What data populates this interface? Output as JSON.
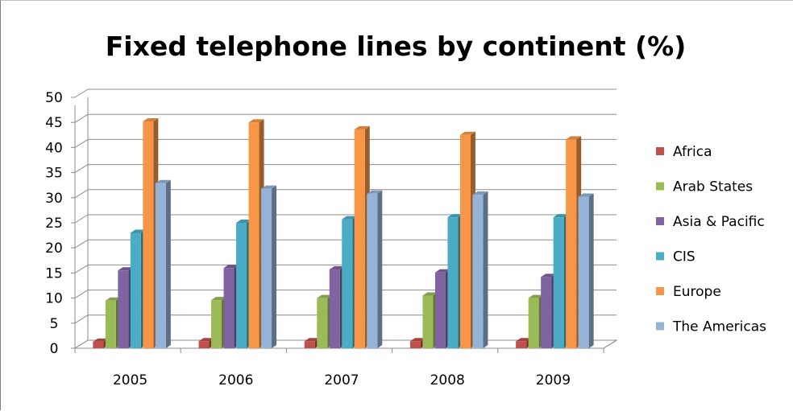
{
  "chart_data": {
    "type": "bar",
    "title": "Fixed telephone lines by continent (%)",
    "xlabel": "",
    "ylabel": "",
    "ylim": [
      0,
      50
    ],
    "yticks": [
      0,
      5,
      10,
      15,
      20,
      25,
      30,
      35,
      40,
      45,
      50
    ],
    "grid": true,
    "three_d": true,
    "legend_position": "right",
    "categories": [
      "2005",
      "2006",
      "2007",
      "2008",
      "2009"
    ],
    "series": [
      {
        "name": "Africa",
        "color": "#c0504d",
        "values": [
          1.3,
          1.4,
          1.4,
          1.4,
          1.4
        ]
      },
      {
        "name": "Arab States",
        "color": "#9bbb59",
        "values": [
          9.5,
          9.6,
          10.0,
          10.5,
          10.0
        ]
      },
      {
        "name": "Asia & Pacific",
        "color": "#8064a2",
        "values": [
          15.5,
          16.0,
          15.7,
          15.1,
          14.2
        ]
      },
      {
        "name": "CIS",
        "color": "#4bacc6",
        "values": [
          23.0,
          25.0,
          25.7,
          26.1,
          26.1
        ]
      },
      {
        "name": "Europe",
        "color": "#f79646",
        "values": [
          45.2,
          45.0,
          43.6,
          42.5,
          41.6
        ]
      },
      {
        "name": "The Americas",
        "color": "#95b3d7",
        "values": [
          32.9,
          31.8,
          30.8,
          30.6,
          30.2
        ]
      }
    ]
  }
}
